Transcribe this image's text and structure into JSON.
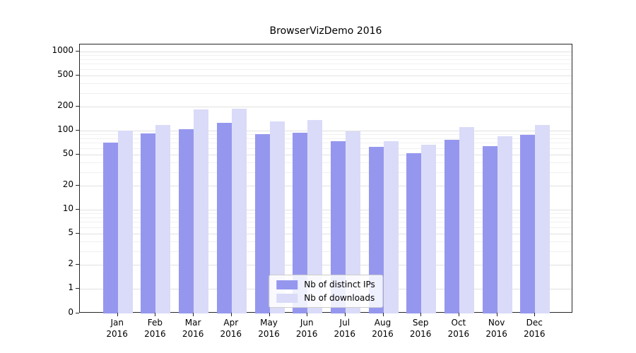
{
  "chart_data": {
    "type": "bar",
    "title": "BrowserVizDemo 2016",
    "scale": "symlog",
    "grid": true,
    "categories": [
      "Jan",
      "Feb",
      "Mar",
      "Apr",
      "May",
      "Jun",
      "Jul",
      "Aug",
      "Sep",
      "Oct",
      "Nov",
      "Dec"
    ],
    "x_year": "2016",
    "series": [
      {
        "name": "Nb of distinct IPs",
        "color": "#9597ee",
        "values": [
          70,
          92,
          105,
          125,
          90,
          95,
          74,
          62,
          52,
          77,
          64,
          88
        ]
      },
      {
        "name": "Nb of downloads",
        "color": "#dadbf8",
        "values": [
          100,
          118,
          185,
          190,
          130,
          135,
          98,
          73,
          66,
          110,
          85,
          118
        ]
      }
    ],
    "yticks": [
      0,
      1,
      2,
      5,
      10,
      20,
      50,
      100,
      200,
      500,
      1000
    ],
    "ylim": [
      0,
      1000
    ],
    "legend_position": "bottom-center-inside"
  }
}
